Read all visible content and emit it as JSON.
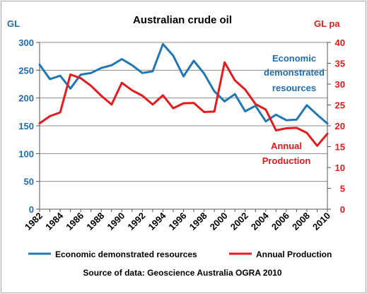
{
  "chart_data": {
    "type": "line",
    "title": "Australian crude oil",
    "y_left_label": "GL",
    "y_right_label": "GL pa",
    "ylim_left": [
      0,
      300
    ],
    "ylim_right": [
      0,
      40
    ],
    "y_left_ticks": [
      "0",
      "50",
      "100",
      "150",
      "200",
      "250",
      "300"
    ],
    "y_right_ticks": [
      "0",
      "5",
      "10",
      "15",
      "20",
      "25",
      "30",
      "35",
      "40"
    ],
    "x_tick_labels": [
      "1982",
      "1984",
      "1986",
      "1988",
      "1990",
      "1992",
      "1994",
      "1996",
      "1998",
      "2000",
      "2002",
      "2004",
      "2006",
      "2008",
      "2010"
    ],
    "x": [
      1982,
      1983,
      1984,
      1985,
      1986,
      1987,
      1988,
      1989,
      1990,
      1991,
      1992,
      1993,
      1994,
      1995,
      1996,
      1997,
      1998,
      1999,
      2000,
      2001,
      2002,
      2003,
      2004,
      2005,
      2006,
      2007,
      2008,
      2009,
      2010
    ],
    "grid": "horizontal",
    "legend_position": "bottom",
    "series": [
      {
        "name": "Economic demonstrated resources",
        "axis": "left",
        "color": "#1f77b4",
        "annotation": [
          "Economic",
          "demonstrated",
          "resources"
        ],
        "values": [
          260,
          234,
          240,
          217,
          242,
          245,
          254,
          259,
          270,
          259,
          245,
          248,
          297,
          276,
          239,
          267,
          244,
          212,
          194,
          207,
          176,
          186,
          158,
          170,
          160,
          161,
          187,
          170,
          154
        ]
      },
      {
        "name": "Annual Production",
        "axis": "right",
        "color": "#e41a1c",
        "annotation": [
          "Annual",
          "Production"
        ],
        "values": [
          20.6,
          22.3,
          23.2,
          32.3,
          31.4,
          29.6,
          27.2,
          25.1,
          30.3,
          28.5,
          27.2,
          25.1,
          27.3,
          24.2,
          25.4,
          25.5,
          23.3,
          23.4,
          35.2,
          30.9,
          28.7,
          25.2,
          23.9,
          18.9,
          19.4,
          19.5,
          18.3,
          15.2,
          18.1
        ]
      }
    ],
    "source": "Source of data: Geoscience Australia OGRA 2010"
  }
}
